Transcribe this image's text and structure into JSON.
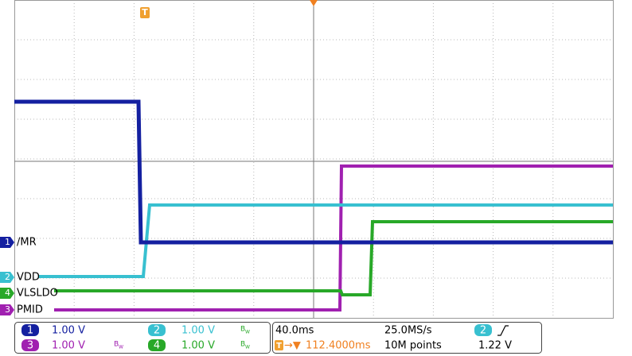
{
  "channels": [
    {
      "number": "1",
      "label": "/MR",
      "scale": "1.00 V"
    },
    {
      "number": "2",
      "label": "VDD",
      "scale": "1.00 V"
    },
    {
      "number": "3",
      "label": "PMID",
      "scale": "1.00 V"
    },
    {
      "number": "4",
      "label": "VLSLDO",
      "scale": "1.00 V"
    }
  ],
  "bandwidth_mark": {
    "main": "B",
    "sub": "W"
  },
  "timebase": {
    "scale": "40.0ms",
    "sample_rate": "25.0MS/s",
    "trigger_position": "112.4000ms",
    "record_length": "10M points"
  },
  "trigger": {
    "marker": "T",
    "arrow": "→▼",
    "source": "2",
    "level": "1.22 V"
  }
}
